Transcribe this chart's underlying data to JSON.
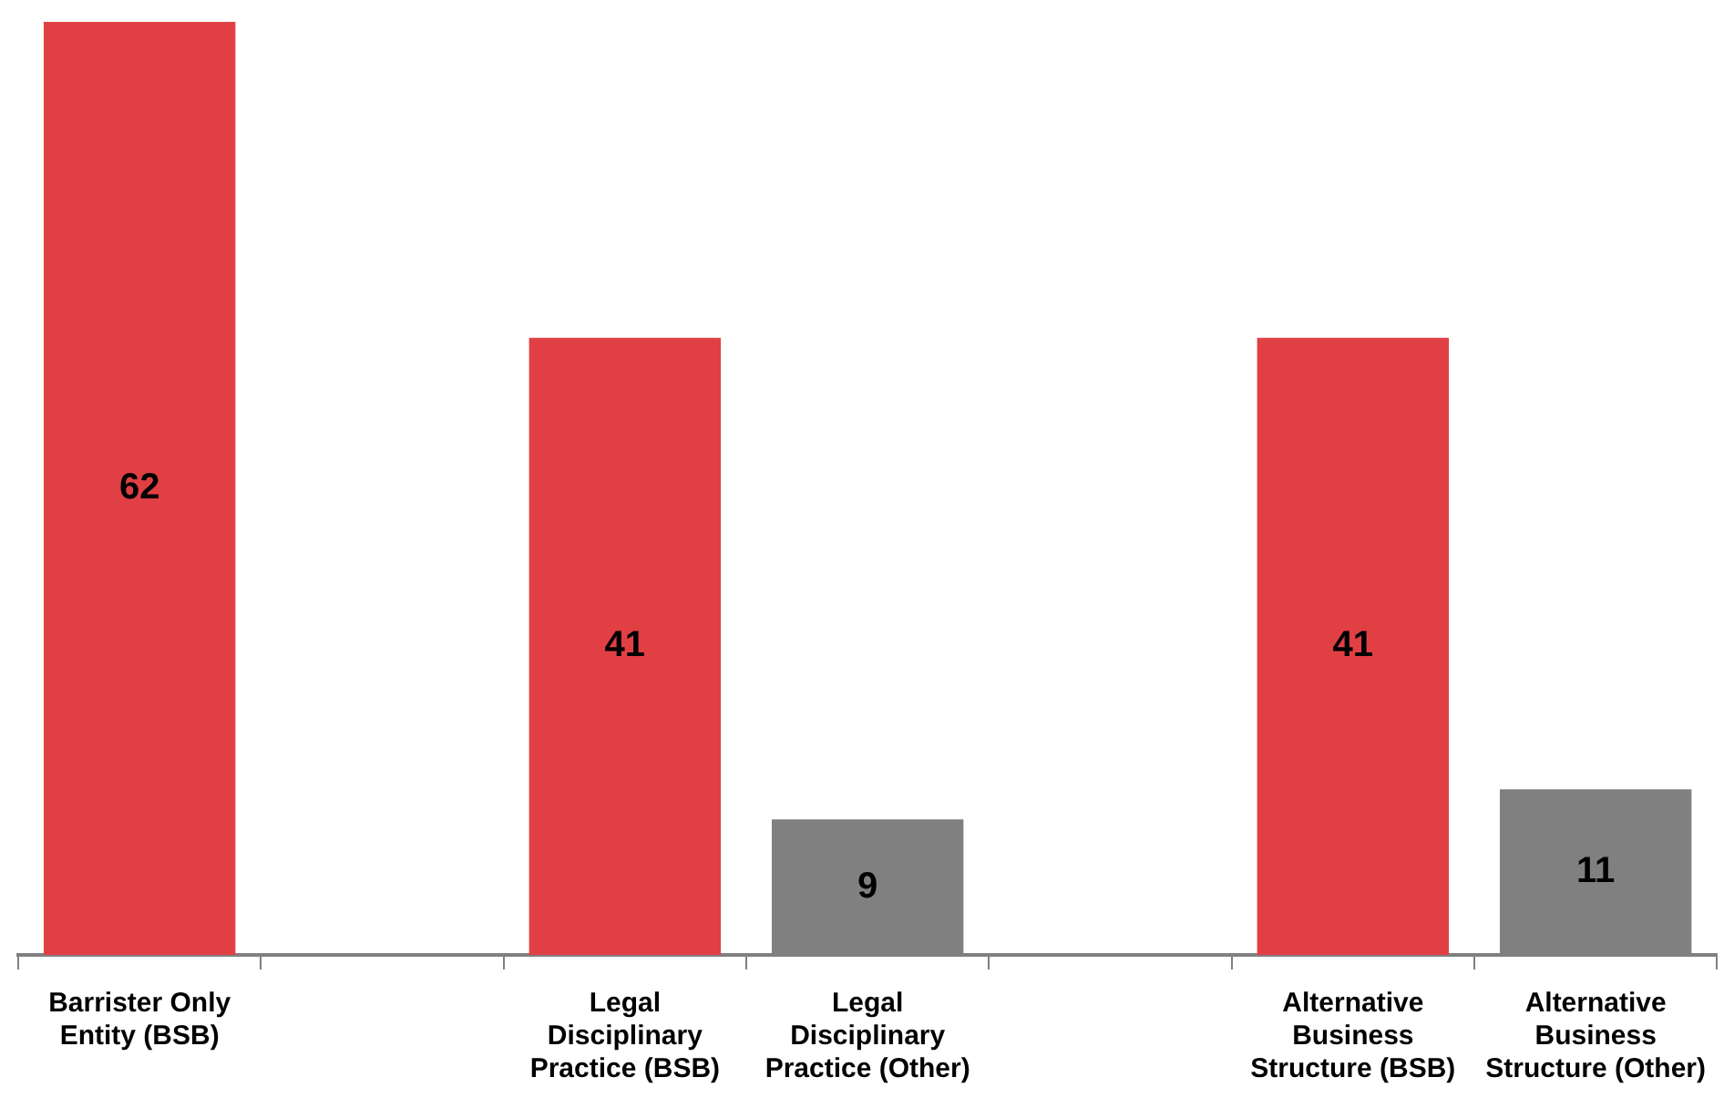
{
  "chart_data": {
    "type": "bar",
    "categories": [
      "Barrister Only Entity (BSB)",
      null,
      "Legal Disciplinary Practice (BSB)",
      "Legal Disciplinary Practice (Other)",
      null,
      "Alternative Business Structure (BSB)",
      "Alternative Business Structure (Other)"
    ],
    "values": [
      62,
      null,
      41,
      9,
      null,
      41,
      11
    ],
    "colors": [
      "#e04044",
      "#e04044",
      "#e04044",
      "#808080",
      "#808080",
      "#e04044",
      "#808080"
    ],
    "data_labels": true,
    "grid": false,
    "legend": false
  }
}
